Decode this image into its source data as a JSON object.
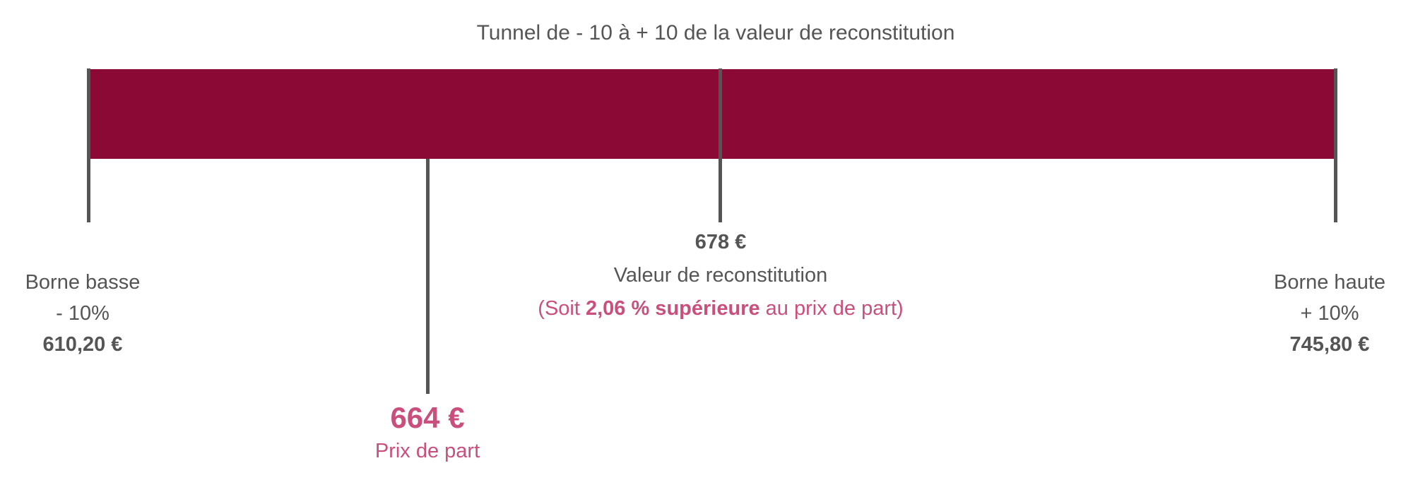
{
  "title": "Tunnel de - 10 à + 10 de la valeur de reconstitution",
  "colors": {
    "bar": "#8B0A35",
    "line": "#555555",
    "accent": "#C94F7C",
    "text": "#555555"
  },
  "low_bound": {
    "label": "Borne basse",
    "pct": "- 10%",
    "value": "610,20 €"
  },
  "high_bound": {
    "label": "Borne haute",
    "pct": "+ 10%",
    "value": "745,80 €"
  },
  "reconstitution": {
    "value": "678 €",
    "label": "Valeur de reconstitution",
    "note_prefix": "(Soit ",
    "note_bold": "2,06 % supérieure",
    "note_suffix": " au prix de part)"
  },
  "share_price": {
    "value": "664 €",
    "label": "Prix de part"
  }
}
